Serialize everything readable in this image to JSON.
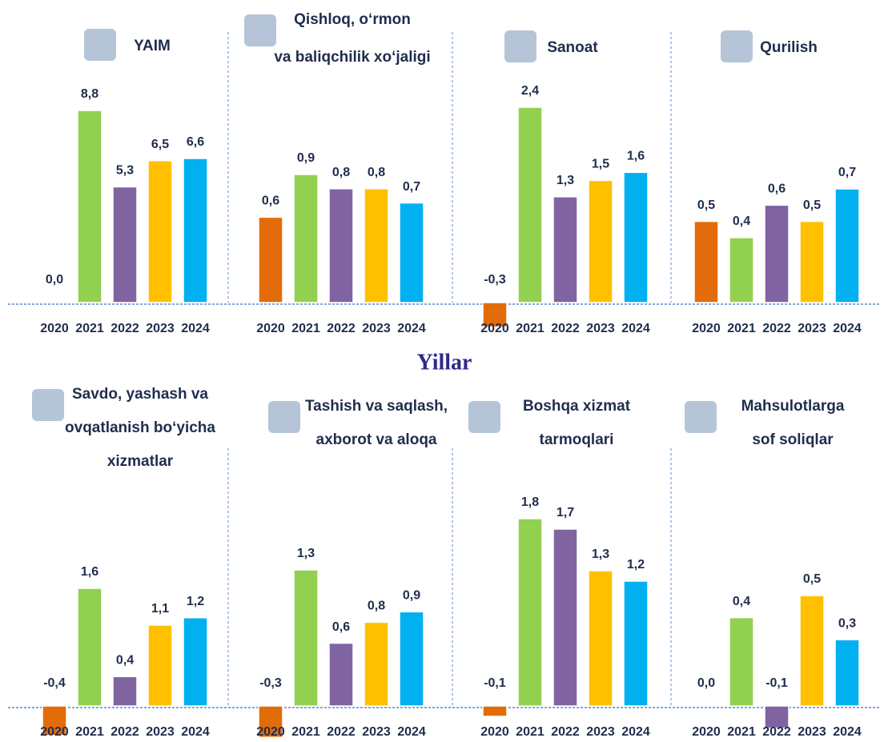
{
  "axis_label": "Yillar",
  "chart_data": [
    {
      "type": "bar",
      "title": [
        "YAIM"
      ],
      "categories": [
        "2020",
        "2021",
        "2022",
        "2023",
        "2024"
      ],
      "values": [
        0.0,
        8.8,
        5.3,
        6.5,
        6.6
      ],
      "value_labels": [
        "0,0",
        "8,8",
        "5,3",
        "6,5",
        "6,6"
      ],
      "colors": [
        "#e36c0a",
        "#92d050",
        "#8064a2",
        "#ffc000",
        "#00b0f0"
      ]
    },
    {
      "type": "bar",
      "title": [
        "Qishloq, o‘rmon",
        "va baliqchilik xo‘jaligi"
      ],
      "categories": [
        "2020",
        "2021",
        "2022",
        "2023",
        "2024"
      ],
      "values": [
        0.6,
        0.9,
        0.8,
        0.8,
        0.7
      ],
      "value_labels": [
        "0,6",
        "0,9",
        "0,8",
        "0,8",
        "0,7"
      ],
      "colors": [
        "#e36c0a",
        "#92d050",
        "#8064a2",
        "#ffc000",
        "#00b0f0"
      ]
    },
    {
      "type": "bar",
      "title": [
        "Sanoat"
      ],
      "categories": [
        "2020",
        "2021",
        "2022",
        "2023",
        "2024"
      ],
      "values": [
        -0.3,
        2.4,
        1.3,
        1.5,
        1.6
      ],
      "value_labels": [
        "-0,3",
        "2,4",
        "1,3",
        "1,5",
        "1,6"
      ],
      "colors": [
        "#e36c0a",
        "#92d050",
        "#8064a2",
        "#ffc000",
        "#00b0f0"
      ]
    },
    {
      "type": "bar",
      "title": [
        "Qurilish"
      ],
      "categories": [
        "2020",
        "2021",
        "2022",
        "2023",
        "2024"
      ],
      "values": [
        0.5,
        0.4,
        0.6,
        0.5,
        0.7
      ],
      "value_labels": [
        "0,5",
        "0,4",
        "0,6",
        "0,5",
        "0,7"
      ],
      "colors": [
        "#e36c0a",
        "#92d050",
        "#8064a2",
        "#ffc000",
        "#00b0f0"
      ]
    },
    {
      "type": "bar",
      "title": [
        "Savdo, yashash va",
        "ovqatlanish bo‘yicha",
        "xizmatlar"
      ],
      "categories": [
        "2020",
        "2021",
        "2022",
        "2023",
        "2024"
      ],
      "values": [
        -0.4,
        1.6,
        0.4,
        1.1,
        1.2
      ],
      "value_labels": [
        "-0,4",
        "1,6",
        "0,4",
        "1,1",
        "1,2"
      ],
      "colors": [
        "#e36c0a",
        "#92d050",
        "#8064a2",
        "#ffc000",
        "#00b0f0"
      ]
    },
    {
      "type": "bar",
      "title": [
        "Tashish va saqlash,",
        "axborot va aloqa"
      ],
      "categories": [
        "2020",
        "2021",
        "2022",
        "2023",
        "2024"
      ],
      "values": [
        -0.3,
        1.3,
        0.6,
        0.8,
        0.9
      ],
      "value_labels": [
        "-0,3",
        "1,3",
        "0,6",
        "0,8",
        "0,9"
      ],
      "colors": [
        "#e36c0a",
        "#92d050",
        "#8064a2",
        "#ffc000",
        "#00b0f0"
      ]
    },
    {
      "type": "bar",
      "title": [
        "Boshqa xizmat",
        "tarmoqlari"
      ],
      "categories": [
        "2020",
        "2021",
        "2022",
        "2023",
        "2024"
      ],
      "values": [
        -0.1,
        1.8,
        1.7,
        1.3,
        1.2
      ],
      "value_labels": [
        "-0,1",
        "1,8",
        "1,7",
        "1,3",
        "1,2"
      ],
      "colors": [
        "#e36c0a",
        "#92d050",
        "#8064a2",
        "#ffc000",
        "#00b0f0"
      ]
    },
    {
      "type": "bar",
      "title": [
        "Mahsulotlarga",
        "sof soliqlar"
      ],
      "categories": [
        "2020",
        "2021",
        "2022",
        "2023",
        "2024"
      ],
      "values": [
        0.0,
        0.4,
        -0.1,
        0.5,
        0.3
      ],
      "value_labels": [
        "0,0",
        "0,4",
        "-0,1",
        "0,5",
        "0,3"
      ],
      "colors": [
        "#e36c0a",
        "#92d050",
        "#8064a2",
        "#ffc000",
        "#00b0f0"
      ]
    }
  ]
}
